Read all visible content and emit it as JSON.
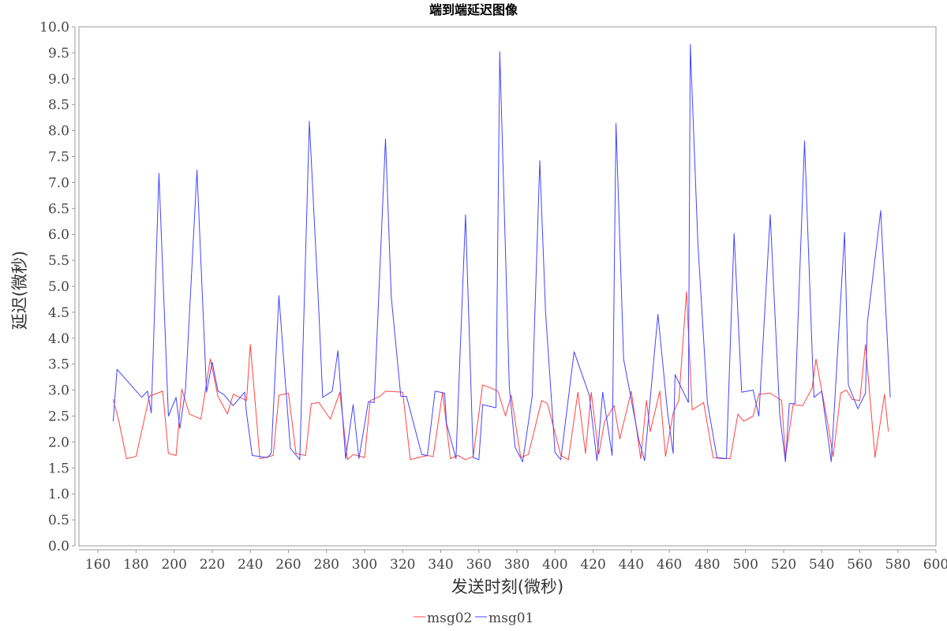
{
  "chart_data": {
    "type": "line",
    "title": "端到端延迟图像",
    "xlabel": "发送时刻(微秒)",
    "ylabel": "延迟(微秒)",
    "xlim": [
      150,
      600
    ],
    "ylim": [
      0.0,
      10.0
    ],
    "x_ticks": [
      "160",
      "180",
      "200",
      "220",
      "240",
      "260",
      "280",
      "300",
      "320",
      "340",
      "360",
      "380",
      "400",
      "420",
      "440",
      "460",
      "480",
      "500",
      "520",
      "540",
      "560",
      "580",
      "600"
    ],
    "y_ticks": [
      "0.0",
      "0.5",
      "1.0",
      "1.5",
      "2.0",
      "2.5",
      "3.0",
      "3.5",
      "4.0",
      "4.5",
      "5.0",
      "5.5",
      "6.0",
      "6.5",
      "7.0",
      "7.5",
      "8.0",
      "8.5",
      "9.0",
      "9.5",
      "10.0"
    ],
    "grid": false,
    "legend_position": "bottom-center",
    "series": [
      {
        "name": "msg02",
        "color": "#ff4444",
        "points": [
          [
            168,
            2.82
          ],
          [
            171,
            2.4
          ],
          [
            175,
            1.68
          ],
          [
            180,
            1.72
          ],
          [
            187,
            2.88
          ],
          [
            194,
            2.98
          ],
          [
            197,
            1.78
          ],
          [
            201,
            1.74
          ],
          [
            204,
            3.02
          ],
          [
            208,
            2.54
          ],
          [
            214,
            2.44
          ],
          [
            219,
            3.6
          ],
          [
            223,
            2.88
          ],
          [
            228,
            2.54
          ],
          [
            231,
            2.92
          ],
          [
            238,
            2.8
          ],
          [
            240,
            3.88
          ],
          [
            245,
            1.68
          ],
          [
            250,
            1.72
          ],
          [
            252,
            1.74
          ],
          [
            255,
            2.9
          ],
          [
            260,
            2.94
          ],
          [
            264,
            1.78
          ],
          [
            269,
            1.74
          ],
          [
            272,
            2.74
          ],
          [
            276,
            2.76
          ],
          [
            282,
            2.44
          ],
          [
            287,
            2.96
          ],
          [
            291,
            1.66
          ],
          [
            294,
            1.76
          ],
          [
            300,
            1.7
          ],
          [
            303,
            2.8
          ],
          [
            308,
            2.88
          ],
          [
            311,
            2.98
          ],
          [
            320,
            2.96
          ],
          [
            324,
            1.66
          ],
          [
            328,
            1.7
          ],
          [
            333,
            1.74
          ],
          [
            336,
            1.72
          ],
          [
            341,
            2.96
          ],
          [
            345,
            1.68
          ],
          [
            349,
            1.74
          ],
          [
            353,
            1.66
          ],
          [
            357,
            1.72
          ],
          [
            362,
            3.1
          ],
          [
            365,
            3.06
          ],
          [
            370,
            2.98
          ],
          [
            374,
            2.5
          ],
          [
            377,
            2.9
          ],
          [
            382,
            1.7
          ],
          [
            386,
            1.76
          ],
          [
            393,
            2.8
          ],
          [
            396,
            2.74
          ],
          [
            403,
            1.74
          ],
          [
            407,
            1.66
          ],
          [
            412,
            2.96
          ],
          [
            416,
            1.78
          ],
          [
            419,
            2.96
          ],
          [
            423,
            1.76
          ],
          [
            426,
            2.4
          ],
          [
            431,
            2.7
          ],
          [
            434,
            2.06
          ],
          [
            440,
            2.98
          ],
          [
            445,
            1.68
          ],
          [
            448,
            2.8
          ],
          [
            450,
            2.2
          ],
          [
            455,
            2.98
          ],
          [
            458,
            1.72
          ],
          [
            462,
            2.56
          ],
          [
            465,
            2.8
          ],
          [
            469,
            4.9
          ],
          [
            472,
            2.62
          ],
          [
            478,
            2.76
          ],
          [
            483,
            1.7
          ],
          [
            488,
            1.68
          ],
          [
            492,
            1.68
          ],
          [
            496,
            2.54
          ],
          [
            499,
            2.4
          ],
          [
            504,
            2.5
          ],
          [
            507,
            2.92
          ],
          [
            513,
            2.94
          ],
          [
            519,
            2.8
          ],
          [
            521,
            1.7
          ],
          [
            525,
            2.72
          ],
          [
            530,
            2.7
          ],
          [
            535,
            3.04
          ],
          [
            537,
            3.6
          ],
          [
            543,
            2.4
          ],
          [
            546,
            1.72
          ],
          [
            550,
            2.94
          ],
          [
            553,
            3.0
          ],
          [
            556,
            2.82
          ],
          [
            560,
            2.8
          ],
          [
            563,
            3.88
          ],
          [
            568,
            1.7
          ],
          [
            573,
            2.92
          ],
          [
            575,
            2.2
          ]
        ]
      },
      {
        "name": "msg01",
        "color": "#4444ff",
        "points": [
          [
            168,
            2.4
          ],
          [
            170,
            3.4
          ],
          [
            183,
            2.86
          ],
          [
            186,
            2.98
          ],
          [
            188,
            2.56
          ],
          [
            192,
            7.18
          ],
          [
            197,
            2.5
          ],
          [
            201,
            2.86
          ],
          [
            203,
            2.26
          ],
          [
            206,
            3.02
          ],
          [
            212,
            7.24
          ],
          [
            217,
            2.96
          ],
          [
            220,
            3.54
          ],
          [
            223,
            2.98
          ],
          [
            226,
            2.92
          ],
          [
            231,
            2.7
          ],
          [
            237,
            2.96
          ],
          [
            238,
            2.56
          ],
          [
            241,
            1.74
          ],
          [
            245,
            1.72
          ],
          [
            249,
            1.7
          ],
          [
            251,
            1.78
          ],
          [
            255,
            4.82
          ],
          [
            261,
            1.88
          ],
          [
            266,
            1.66
          ],
          [
            271,
            8.18
          ],
          [
            276,
            4.5
          ],
          [
            278,
            2.86
          ],
          [
            283,
            2.98
          ],
          [
            286,
            3.76
          ],
          [
            290,
            1.68
          ],
          [
            294,
            2.72
          ],
          [
            297,
            1.68
          ],
          [
            302,
            2.78
          ],
          [
            305,
            2.76
          ],
          [
            311,
            7.84
          ],
          [
            314,
            4.8
          ],
          [
            319,
            2.88
          ],
          [
            322,
            2.88
          ],
          [
            330,
            1.76
          ],
          [
            333,
            1.74
          ],
          [
            337,
            2.98
          ],
          [
            342,
            2.94
          ],
          [
            343,
            2.36
          ],
          [
            348,
            1.68
          ],
          [
            353,
            6.38
          ],
          [
            357,
            1.7
          ],
          [
            360,
            1.66
          ],
          [
            362,
            2.72
          ],
          [
            369,
            2.66
          ],
          [
            371,
            9.52
          ],
          [
            376,
            3.06
          ],
          [
            379,
            1.9
          ],
          [
            383,
            1.62
          ],
          [
            388,
            2.88
          ],
          [
            392,
            7.42
          ],
          [
            395,
            4.5
          ],
          [
            400,
            1.8
          ],
          [
            403,
            1.66
          ],
          [
            410,
            3.74
          ],
          [
            418,
            2.9
          ],
          [
            422,
            1.64
          ],
          [
            425,
            2.96
          ],
          [
            430,
            1.74
          ],
          [
            432,
            8.14
          ],
          [
            436,
            3.6
          ],
          [
            444,
            2.04
          ],
          [
            447,
            1.64
          ],
          [
            454,
            4.46
          ],
          [
            459,
            2.6
          ],
          [
            462,
            1.78
          ],
          [
            463,
            3.3
          ],
          [
            470,
            2.76
          ],
          [
            471,
            9.66
          ],
          [
            475,
            5.84
          ],
          [
            480,
            2.76
          ],
          [
            485,
            1.7
          ],
          [
            490,
            1.68
          ],
          [
            494,
            6.02
          ],
          [
            498,
            2.96
          ],
          [
            504,
            3.0
          ],
          [
            507,
            2.5
          ],
          [
            513,
            6.38
          ],
          [
            518,
            2.52
          ],
          [
            521,
            1.62
          ],
          [
            523,
            2.74
          ],
          [
            526,
            2.74
          ],
          [
            531,
            7.8
          ],
          [
            535,
            3.74
          ],
          [
            536,
            2.86
          ],
          [
            540,
            2.98
          ],
          [
            545,
            1.62
          ],
          [
            552,
            6.04
          ],
          [
            554,
            3.1
          ],
          [
            559,
            2.64
          ],
          [
            563,
            2.94
          ],
          [
            564,
            4.3
          ],
          [
            571,
            6.46
          ],
          [
            576,
            2.86
          ]
        ]
      }
    ]
  }
}
